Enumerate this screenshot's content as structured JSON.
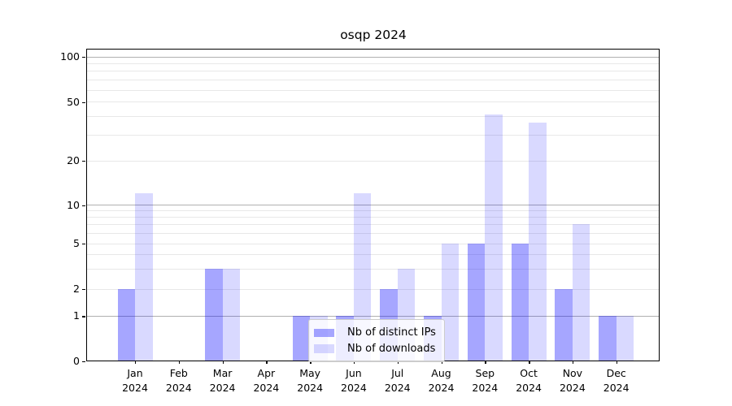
{
  "chart_data": {
    "type": "bar",
    "title": "osqp 2024",
    "year_label": "2024",
    "categories": [
      "Jan",
      "Feb",
      "Mar",
      "Apr",
      "May",
      "Jun",
      "Jul",
      "Aug",
      "Sep",
      "Oct",
      "Nov",
      "Dec"
    ],
    "series": [
      {
        "name": "Nb of distinct IPs",
        "color": "rgba(0,0,255,0.35)",
        "values": [
          2,
          0,
          3,
          0,
          1,
          1,
          2,
          1,
          5,
          5,
          2,
          1
        ]
      },
      {
        "name": "Nb of downloads",
        "color": "rgba(0,0,255,0.15)",
        "values": [
          12,
          0,
          3,
          0,
          1,
          12,
          3,
          5,
          41,
          36,
          7,
          1
        ]
      }
    ],
    "xlabel": "",
    "ylabel": "",
    "y_axis": {
      "scale": "log-like with zero baseline",
      "ticks": [
        0,
        1,
        2,
        5,
        10,
        20,
        50,
        100
      ],
      "decade_ticks": [
        1,
        10,
        100
      ],
      "minor_gridlines": [
        3,
        4,
        6,
        7,
        8,
        9,
        30,
        40,
        60,
        70,
        80,
        90
      ],
      "ylim": [
        0,
        115
      ]
    },
    "grid": "on",
    "legend": {
      "position": "lower center",
      "entries": [
        "Nb of distinct IPs",
        "Nb of downloads"
      ]
    },
    "colors": {
      "bar_ips": "#a6a6ff",
      "bar_downloads": "#d9d9ff",
      "grid_decade": "#b0b0b0",
      "grid_minor": "#e8e8e8",
      "frame": "#000000"
    }
  }
}
